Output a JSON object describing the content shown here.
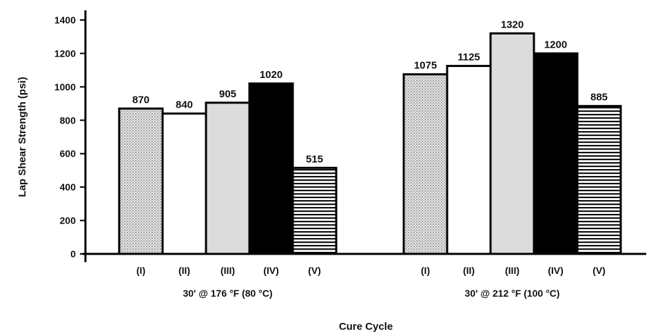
{
  "chart_data": {
    "type": "bar",
    "xlabel": "Cure Cycle",
    "ylabel": "Lap Shear Strength (psi)",
    "ylim": [
      0,
      1400
    ],
    "yticks": [
      0,
      200,
      400,
      600,
      800,
      1000,
      1200,
      1400
    ],
    "grid": false,
    "categories": [
      "(I)",
      "(II)",
      "(III)",
      "(IV)",
      "(V)"
    ],
    "groups": [
      {
        "label": "30' @ 176 °F (80 °C)",
        "values": [
          870,
          840,
          905,
          1020,
          515
        ]
      },
      {
        "label": "30' @ 212 °F (100 °C)",
        "values": [
          1075,
          1125,
          1320,
          1200,
          885
        ]
      }
    ],
    "bar_styles": [
      "dotted-gray",
      "white",
      "light-gray",
      "black",
      "horizontal-stripes"
    ],
    "colors": {
      "axis": "#000000",
      "light_gray": "#dcdcdc",
      "black": "#000000",
      "white": "#ffffff"
    }
  }
}
